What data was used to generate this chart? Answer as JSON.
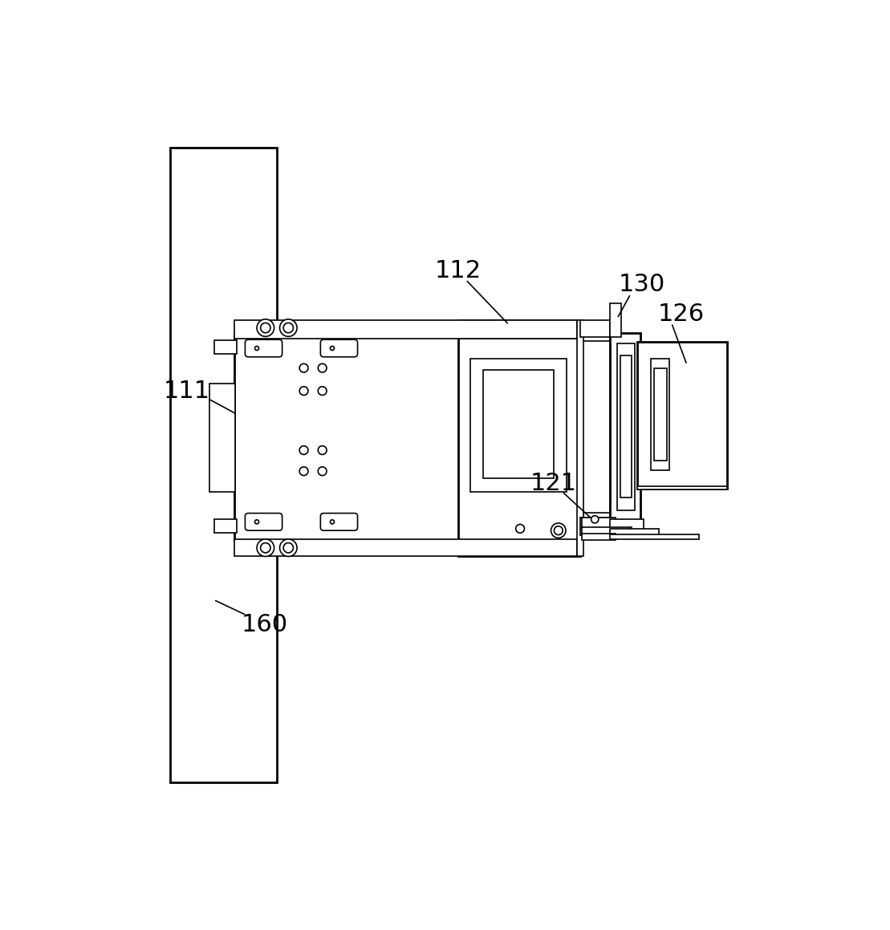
{
  "bg_color": "#ffffff",
  "line_color": "#000000",
  "lw": 1.2,
  "lw_thick": 2.0,
  "label_fontsize": 22,
  "figsize": [
    11.09,
    11.59
  ],
  "dpi": 100
}
